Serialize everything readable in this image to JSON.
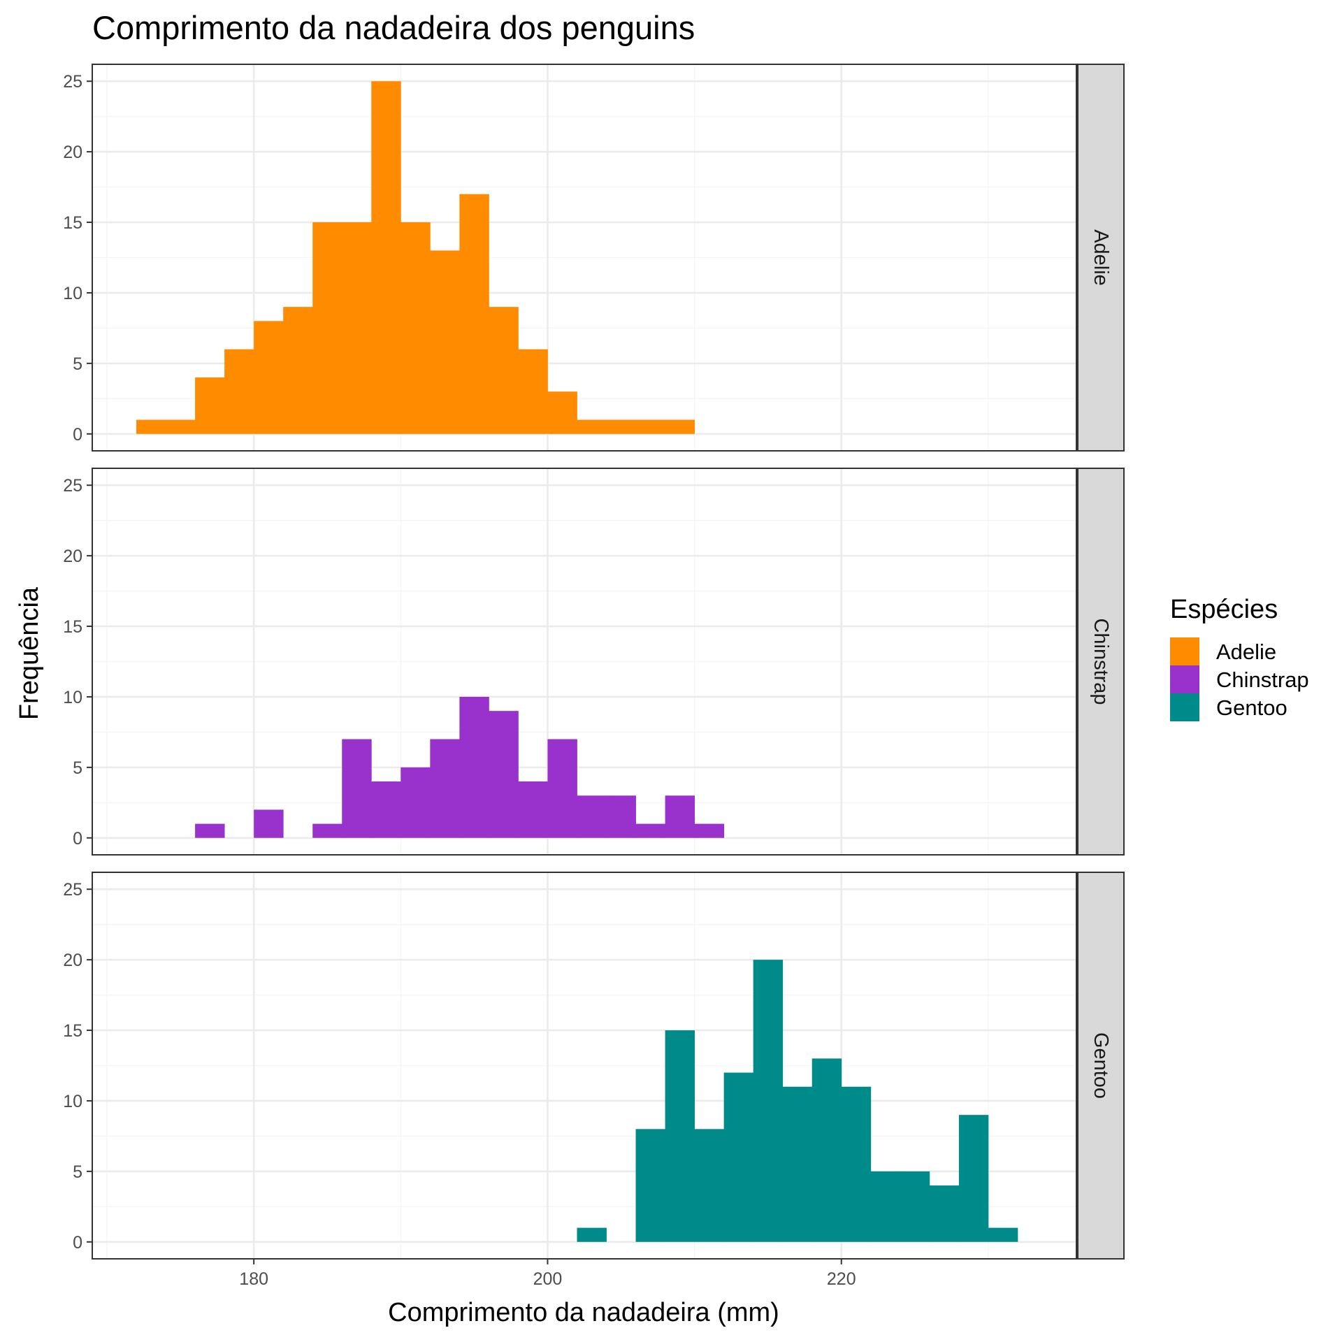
{
  "chart_data": {
    "type": "bar",
    "subtype": "faceted histogram",
    "title": "Comprimento da nadadeira dos penguins",
    "xlabel": "Comprimento da nadadeira (mm)",
    "ylabel": "Frequência",
    "xlim": [
      169,
      236
    ],
    "ylim": [
      -1.2,
      26.2
    ],
    "x_ticks": [
      180,
      200,
      220
    ],
    "y_ticks": [
      0,
      5,
      10,
      15,
      20,
      25
    ],
    "grid": true,
    "facet_layout": "rows",
    "legend": {
      "title": "Espécies",
      "position": "right",
      "entries": [
        "Adelie",
        "Chinstrap",
        "Gentoo"
      ]
    },
    "bin_edges": [
      172,
      174,
      176,
      178,
      180,
      182,
      184,
      186,
      188,
      190,
      192,
      194,
      196,
      198,
      200,
      202,
      204,
      206,
      208,
      210,
      212,
      214,
      216,
      218,
      220,
      222,
      224,
      226,
      228,
      230,
      232,
      234
    ],
    "series": [
      {
        "name": "Adelie",
        "color": "#FF8C00",
        "values": [
          1,
          1,
          4,
          6,
          8,
          9,
          15,
          15,
          25,
          15,
          13,
          17,
          9,
          6,
          3,
          1,
          1,
          1,
          1,
          0,
          0,
          0,
          0,
          0,
          0,
          0,
          0,
          0,
          0,
          0,
          0
        ]
      },
      {
        "name": "Chinstrap",
        "color": "#9932CC",
        "values": [
          0,
          0,
          1,
          0,
          2,
          0,
          1,
          7,
          4,
          5,
          7,
          10,
          9,
          4,
          7,
          3,
          3,
          1,
          3,
          1,
          0,
          0,
          0,
          0,
          0,
          0,
          0,
          0,
          0,
          0,
          0
        ]
      },
      {
        "name": "Gentoo",
        "color": "#008B8B",
        "values": [
          0,
          0,
          0,
          0,
          0,
          0,
          0,
          0,
          0,
          0,
          0,
          0,
          0,
          0,
          0,
          1,
          0,
          8,
          15,
          8,
          12,
          20,
          11,
          13,
          11,
          5,
          5,
          4,
          9,
          1,
          0
        ]
      }
    ]
  },
  "colors": {
    "panel_border": "#333333",
    "grid_major": "#ebebeb",
    "grid_minor": "#f5f5f5",
    "strip_fill": "#d9d9d9",
    "tick_text": "#4d4d4d"
  }
}
